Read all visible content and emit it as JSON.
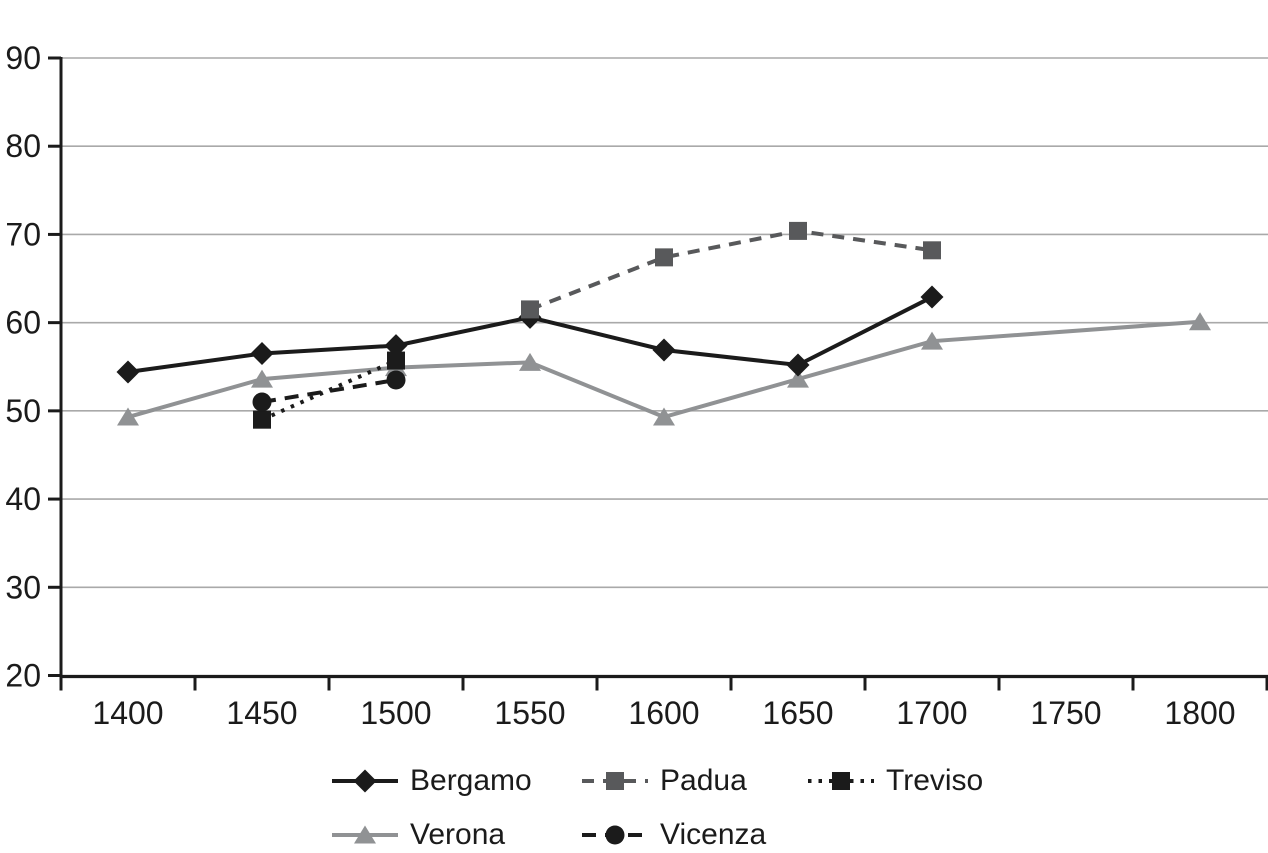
{
  "chart_data": {
    "type": "line",
    "title": "",
    "xlabel": "",
    "ylabel": "",
    "x_tick_labels": [
      "1400",
      "1450",
      "1500",
      "1550",
      "1600",
      "1650",
      "1700",
      "1750",
      "1800"
    ],
    "x_start_year": 1400,
    "x_step_years": 50,
    "ylim": [
      20,
      90
    ],
    "y_ticks": [
      90,
      80,
      70,
      60,
      50,
      40,
      30,
      20
    ],
    "grid": true,
    "legend_position": "bottom",
    "colors": {
      "black_series": "#1b1b1b",
      "padua_gray": "#58595b",
      "verona_gray": "#909294",
      "gridline": "#a9a9a9",
      "axis": "#1b1b1b",
      "background": "#ffffff"
    },
    "series": [
      {
        "name": "Bergamo",
        "marker": "diamond",
        "line_style": "solid",
        "color": "#1b1b1b",
        "zorder": 4,
        "points": [
          [
            1400,
            54.4
          ],
          [
            1450,
            56.5
          ],
          [
            1500,
            57.4
          ],
          [
            1550,
            60.6
          ],
          [
            1600,
            56.9
          ],
          [
            1650,
            55.2
          ],
          [
            1700,
            62.9
          ]
        ]
      },
      {
        "name": "Padua",
        "marker": "square",
        "line_style": "dashed",
        "color": "#58595b",
        "zorder": 5,
        "points": [
          [
            1550,
            61.5
          ],
          [
            1600,
            67.4
          ],
          [
            1650,
            70.4
          ],
          [
            1700,
            68.2
          ]
        ]
      },
      {
        "name": "Treviso",
        "marker": "square",
        "line_style": "dotted",
        "color": "#1b1b1b",
        "zorder": 2,
        "points": [
          [
            1450,
            49.0
          ],
          [
            1500,
            55.7
          ]
        ]
      },
      {
        "name": "Verona",
        "marker": "triangle",
        "line_style": "solid",
        "color": "#909294",
        "zorder": 1,
        "points": [
          [
            1400,
            49.3
          ],
          [
            1450,
            53.6
          ],
          [
            1500,
            54.9
          ],
          [
            1550,
            55.5
          ],
          [
            1600,
            49.3
          ],
          [
            1650,
            53.6
          ],
          [
            1700,
            57.9
          ],
          [
            1800,
            60.1
          ]
        ]
      },
      {
        "name": "Vicenza",
        "marker": "circle",
        "line_style": "long-dash",
        "color": "#1b1b1b",
        "zorder": 3,
        "points": [
          [
            1450,
            51.0
          ],
          [
            1500,
            53.5
          ]
        ]
      }
    ]
  }
}
